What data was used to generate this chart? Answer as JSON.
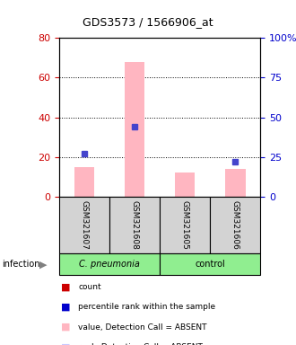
{
  "title": "GDS3573 / 1566906_at",
  "samples": [
    "GSM321607",
    "GSM321608",
    "GSM321605",
    "GSM321606"
  ],
  "bar_values": [
    15,
    68,
    12,
    14
  ],
  "bar_color": "#ffb6c1",
  "rank_values": [
    27,
    44,
    null,
    22
  ],
  "rank_color": "#4444cc",
  "left_ylim": [
    0,
    80
  ],
  "right_ylim": [
    0,
    100
  ],
  "left_yticks": [
    0,
    20,
    40,
    60,
    80
  ],
  "right_yticks": [
    0,
    25,
    50,
    75,
    100
  ],
  "right_yticklabels": [
    "0",
    "25",
    "50",
    "75",
    "100%"
  ],
  "left_tick_color": "#cc0000",
  "right_tick_color": "#0000cc",
  "group_label_pneumonia": "C. pneumonia",
  "group_label_control": "control",
  "infection_label": "infection",
  "pneumonia_color": "#90ee90",
  "control_color": "#90ee90",
  "sample_box_color": "#d3d3d3",
  "legend_colors": [
    "#cc0000",
    "#0000cc",
    "#ffb6c1",
    "#c8c8ff"
  ],
  "legend_labels": [
    "count",
    "percentile rank within the sample",
    "value, Detection Call = ABSENT",
    "rank, Detection Call = ABSENT"
  ]
}
